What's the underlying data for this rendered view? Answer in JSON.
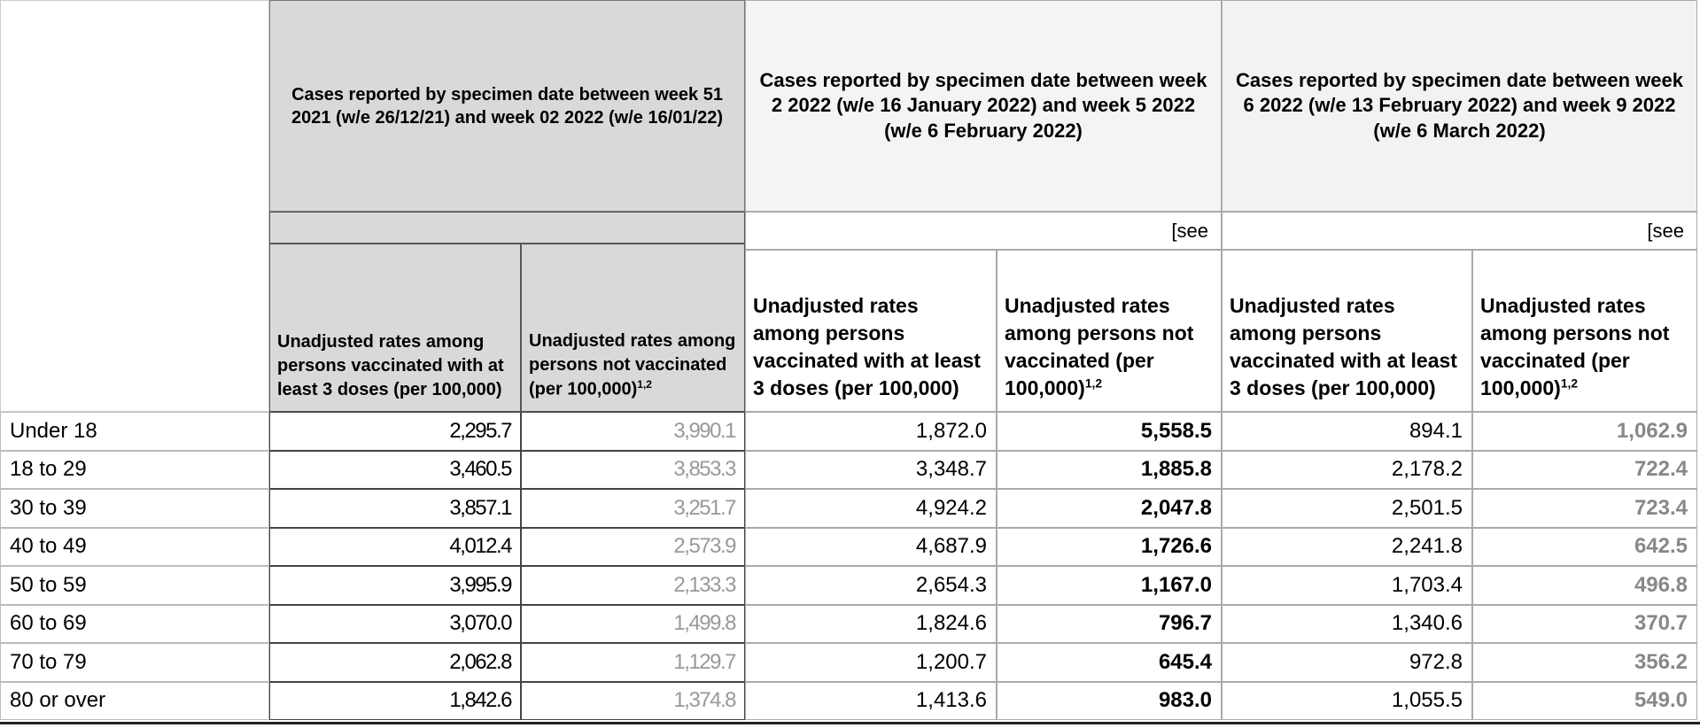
{
  "table": {
    "groups": [
      {
        "title": "Cases reported by specimen date between week 51 2021 (w/e 26/12/21) and week 02 2022 (w/e 16/01/22)"
      },
      {
        "title": "Cases reported by specimen date between week 2 2022 (w/e 16 January 2022) and week 5 2022 (w/e 6 February 2022)",
        "note": "[see"
      },
      {
        "title": "Cases reported by specimen date between week 6 2022 (w/e 13 February 2022) and week 9 2022 (w/e 6 March 2022)",
        "note": "[see"
      }
    ],
    "columns": [
      {
        "text": "Unadjusted rates among persons vaccinated with at least 3 doses (per 100,000)"
      },
      {
        "text": "Unadjusted rates among persons not vaccinated (per 100,000)",
        "sup": "1,2"
      },
      {
        "text": "Unadjusted rates among persons vaccinated with at least 3 doses (per 100,000)"
      },
      {
        "text": "Unadjusted rates among persons not vaccinated (per 100,000)",
        "sup": "1,2"
      },
      {
        "text": "Unadjusted rates among persons vaccinated with at least 3 doses (per 100,000)"
      },
      {
        "text": "Unadjusted rates among persons not vaccinated (per 100,000)",
        "sup": "1,2"
      }
    ],
    "rows": [
      {
        "label": "Under 18",
        "values": [
          "2,295.7",
          "3,990.1",
          "1,872.0",
          "5,558.5",
          "894.1",
          "1,062.9"
        ]
      },
      {
        "label": "18 to 29",
        "values": [
          "3,460.5",
          "3,853.3",
          "3,348.7",
          "1,885.8",
          "2,178.2",
          "722.4"
        ]
      },
      {
        "label": "30 to 39",
        "values": [
          "3,857.1",
          "3,251.7",
          "4,924.2",
          "2,047.8",
          "2,501.5",
          "723.4"
        ]
      },
      {
        "label": "40 to 49",
        "values": [
          "4,012.4",
          "2,573.9",
          "4,687.9",
          "1,726.6",
          "2,241.8",
          "642.5"
        ]
      },
      {
        "label": "50 to 59",
        "values": [
          "3,995.9",
          "2,133.3",
          "2,654.3",
          "1,167.0",
          "1,703.4",
          "496.8"
        ]
      },
      {
        "label": "60 to 69",
        "values": [
          "3,070.0",
          "1,499.8",
          "1,824.6",
          "796.7",
          "1,340.6",
          "370.7"
        ]
      },
      {
        "label": "70 to 79",
        "values": [
          "2,062.8",
          "1,129.7",
          "1,200.7",
          "645.4",
          "972.8",
          "356.2"
        ]
      },
      {
        "label": "80 or over",
        "values": [
          "1,842.6",
          "1,374.8",
          "1,413.6",
          "983.0",
          "1,055.5",
          "549.0"
        ]
      }
    ]
  }
}
